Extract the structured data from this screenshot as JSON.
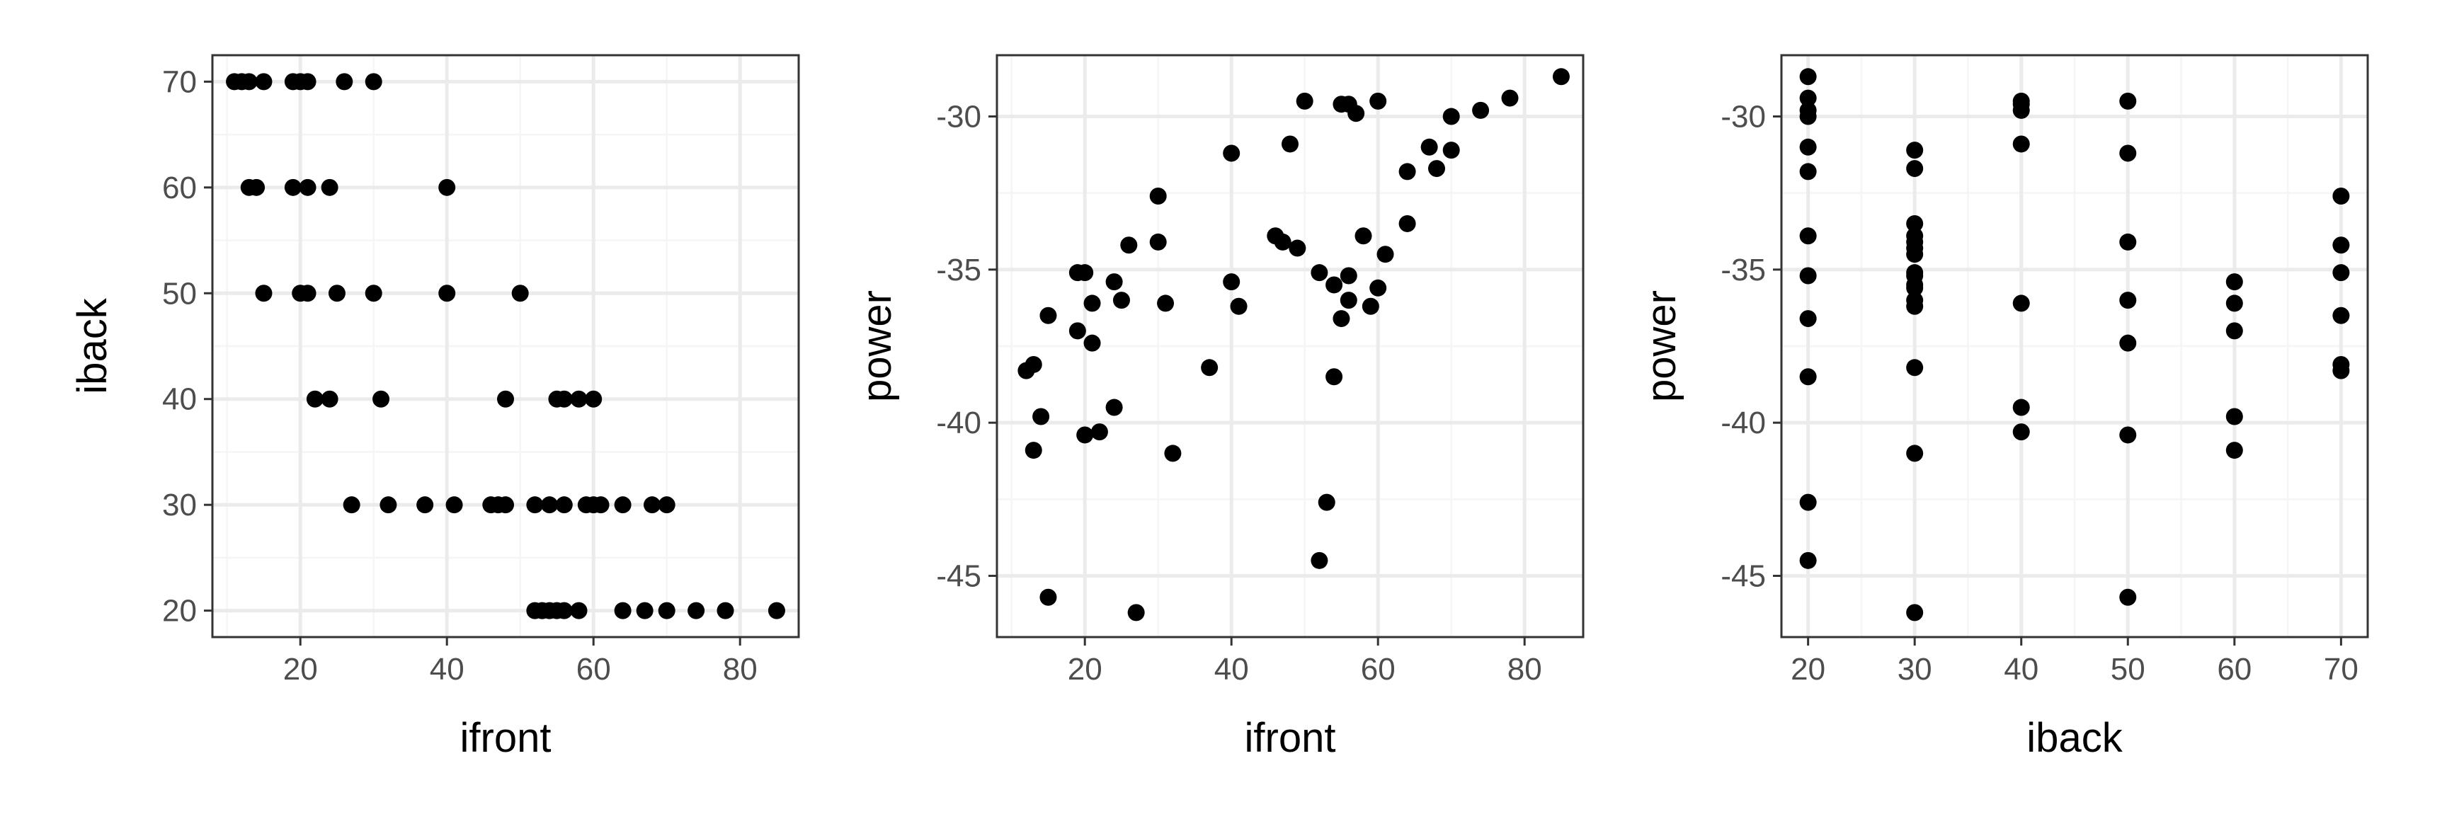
{
  "colors": {
    "background": "#ffffff",
    "panel_background": "#ffffff",
    "grid_major": "#ebebeb",
    "grid_minor": "#f5f5f5",
    "panel_border": "#333333",
    "point": "#000000",
    "tick_text": "#4d4d4d",
    "axis_title": "#000000"
  },
  "chart_data": [
    {
      "type": "scatter",
      "xlabel": "ifront",
      "ylabel": "iback",
      "xlim": [
        8,
        88
      ],
      "ylim": [
        17.5,
        72.5
      ],
      "xticks": [
        20,
        40,
        60,
        80
      ],
      "yticks": [
        20,
        30,
        40,
        50,
        60,
        70
      ],
      "grid": true,
      "points": [
        [
          11,
          70
        ],
        [
          12,
          70
        ],
        [
          13,
          70
        ],
        [
          15,
          70
        ],
        [
          19,
          70
        ],
        [
          20,
          70
        ],
        [
          21,
          70
        ],
        [
          26,
          70
        ],
        [
          30,
          70
        ],
        [
          13,
          60
        ],
        [
          14,
          60
        ],
        [
          19,
          60
        ],
        [
          21,
          60
        ],
        [
          24,
          60
        ],
        [
          40,
          60
        ],
        [
          15,
          50
        ],
        [
          20,
          50
        ],
        [
          21,
          50
        ],
        [
          25,
          50
        ],
        [
          30,
          50
        ],
        [
          40,
          50
        ],
        [
          50,
          50
        ],
        [
          22,
          40
        ],
        [
          24,
          40
        ],
        [
          31,
          40
        ],
        [
          48,
          40
        ],
        [
          55,
          40
        ],
        [
          56,
          40
        ],
        [
          58,
          40
        ],
        [
          60,
          40
        ],
        [
          27,
          30
        ],
        [
          32,
          30
        ],
        [
          37,
          30
        ],
        [
          41,
          30
        ],
        [
          46,
          30
        ],
        [
          47,
          30
        ],
        [
          48,
          30
        ],
        [
          52,
          30
        ],
        [
          54,
          30
        ],
        [
          56,
          30
        ],
        [
          59,
          30
        ],
        [
          60,
          30
        ],
        [
          61,
          30
        ],
        [
          64,
          30
        ],
        [
          68,
          30
        ],
        [
          70,
          30
        ],
        [
          52,
          20
        ],
        [
          53,
          20
        ],
        [
          54,
          20
        ],
        [
          55,
          20
        ],
        [
          56,
          20
        ],
        [
          58,
          20
        ],
        [
          64,
          20
        ],
        [
          67,
          20
        ],
        [
          70,
          20
        ],
        [
          74,
          20
        ],
        [
          78,
          20
        ],
        [
          85,
          20
        ]
      ]
    },
    {
      "type": "scatter",
      "xlabel": "ifront",
      "ylabel": "power",
      "xlim": [
        8,
        88
      ],
      "ylim": [
        -47.0,
        -28.0
      ],
      "xticks": [
        20,
        40,
        60,
        80
      ],
      "yticks": [
        -45,
        -40,
        -35,
        -30
      ],
      "grid": true,
      "points": [
        [
          12,
          -38.3
        ],
        [
          13,
          -38.1
        ],
        [
          13,
          -40.9
        ],
        [
          14,
          -39.8
        ],
        [
          15,
          -36.5
        ],
        [
          15,
          -45.7
        ],
        [
          19,
          -35.1
        ],
        [
          19,
          -37.0
        ],
        [
          20,
          -35.1
        ],
        [
          20,
          -40.4
        ],
        [
          21,
          -36.1
        ],
        [
          21,
          -37.4
        ],
        [
          22,
          -40.3
        ],
        [
          24,
          -35.4
        ],
        [
          24,
          -39.5
        ],
        [
          25,
          -36.0
        ],
        [
          26,
          -34.2
        ],
        [
          27,
          -46.2
        ],
        [
          30,
          -32.6
        ],
        [
          30,
          -34.1
        ],
        [
          31,
          -36.1
        ],
        [
          32,
          -41.0
        ],
        [
          37,
          -38.2
        ],
        [
          40,
          -31.2
        ],
        [
          40,
          -35.4
        ],
        [
          41,
          -36.2
        ],
        [
          46,
          -33.9
        ],
        [
          47,
          -34.1
        ],
        [
          48,
          -30.9
        ],
        [
          49,
          -34.3
        ],
        [
          50,
          -29.5
        ],
        [
          52,
          -35.1
        ],
        [
          52,
          -44.5
        ],
        [
          53,
          -42.6
        ],
        [
          54,
          -38.5
        ],
        [
          54,
          -35.5
        ],
        [
          55,
          -36.6
        ],
        [
          55,
          -29.6
        ],
        [
          56,
          -36.0
        ],
        [
          56,
          -35.2
        ],
        [
          56,
          -29.6
        ],
        [
          57,
          -29.9
        ],
        [
          58,
          -33.9
        ],
        [
          59,
          -36.2
        ],
        [
          60,
          -29.5
        ],
        [
          60,
          -35.6
        ],
        [
          61,
          -34.5
        ],
        [
          64,
          -33.5
        ],
        [
          64,
          -31.8
        ],
        [
          67,
          -31.0
        ],
        [
          68,
          -31.7
        ],
        [
          70,
          -31.1
        ],
        [
          70,
          -30.0
        ],
        [
          74,
          -29.8
        ],
        [
          78,
          -29.4
        ],
        [
          85,
          -28.7
        ]
      ]
    },
    {
      "type": "scatter",
      "xlabel": "iback",
      "ylabel": "power",
      "xlim": [
        17.5,
        72.5
      ],
      "ylim": [
        -47.0,
        -28.0
      ],
      "xticks": [
        20,
        30,
        40,
        50,
        60,
        70
      ],
      "yticks": [
        -45,
        -40,
        -35,
        -30
      ],
      "grid": true,
      "points": [
        [
          20,
          -28.7
        ],
        [
          20,
          -29.4
        ],
        [
          20,
          -29.8
        ],
        [
          20,
          -30.0
        ],
        [
          20,
          -31.0
        ],
        [
          20,
          -31.8
        ],
        [
          20,
          -33.9
        ],
        [
          20,
          -35.2
        ],
        [
          20,
          -36.6
        ],
        [
          20,
          -38.5
        ],
        [
          20,
          -42.6
        ],
        [
          20,
          -44.5
        ],
        [
          30,
          -31.1
        ],
        [
          30,
          -31.7
        ],
        [
          30,
          -33.5
        ],
        [
          30,
          -33.9
        ],
        [
          30,
          -34.1
        ],
        [
          30,
          -34.3
        ],
        [
          30,
          -34.5
        ],
        [
          30,
          -35.1
        ],
        [
          30,
          -35.2
        ],
        [
          30,
          -35.5
        ],
        [
          30,
          -35.6
        ],
        [
          30,
          -36.0
        ],
        [
          30,
          -36.2
        ],
        [
          30,
          -38.2
        ],
        [
          30,
          -41.0
        ],
        [
          30,
          -46.2
        ],
        [
          40,
          -29.5
        ],
        [
          40,
          -29.6
        ],
        [
          40,
          -29.8
        ],
        [
          40,
          -30.9
        ],
        [
          40,
          -36.1
        ],
        [
          40,
          -39.5
        ],
        [
          40,
          -40.3
        ],
        [
          50,
          -29.5
        ],
        [
          50,
          -31.2
        ],
        [
          50,
          -34.1
        ],
        [
          50,
          -36.0
        ],
        [
          50,
          -37.4
        ],
        [
          50,
          -40.4
        ],
        [
          50,
          -45.7
        ],
        [
          60,
          -35.4
        ],
        [
          60,
          -36.1
        ],
        [
          60,
          -37.0
        ],
        [
          60,
          -39.8
        ],
        [
          60,
          -40.9
        ],
        [
          70,
          -32.6
        ],
        [
          70,
          -34.2
        ],
        [
          70,
          -35.1
        ],
        [
          70,
          -36.5
        ],
        [
          70,
          -38.1
        ],
        [
          70,
          -38.3
        ]
      ]
    }
  ]
}
